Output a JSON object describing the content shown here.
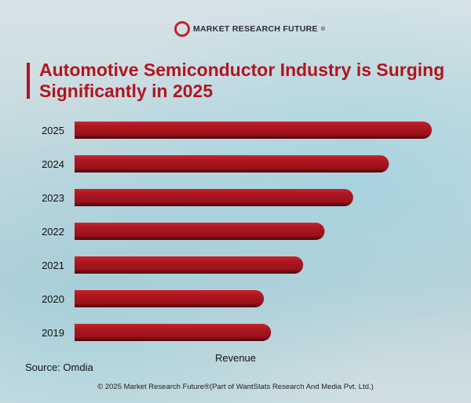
{
  "brand": {
    "name": "MARKET RESEARCH FUTURE",
    "registered": "®"
  },
  "title": "Automotive Semiconductor Industry is Surging Significantly in 2025",
  "chart_data": {
    "type": "bar",
    "orientation": "horizontal",
    "categories": [
      "2025",
      "2024",
      "2023",
      "2022",
      "2021",
      "2020",
      "2019"
    ],
    "values": [
      100,
      88,
      78,
      70,
      64,
      53,
      55
    ],
    "xlabel": "Revenue",
    "ylabel": "",
    "grid": false,
    "bar_color": "#a8141e"
  },
  "source": "Source: Omdia",
  "footer": "© 2025 Market Research Future®(Part of WantStats Research And Media Pvt. Ltd.)"
}
